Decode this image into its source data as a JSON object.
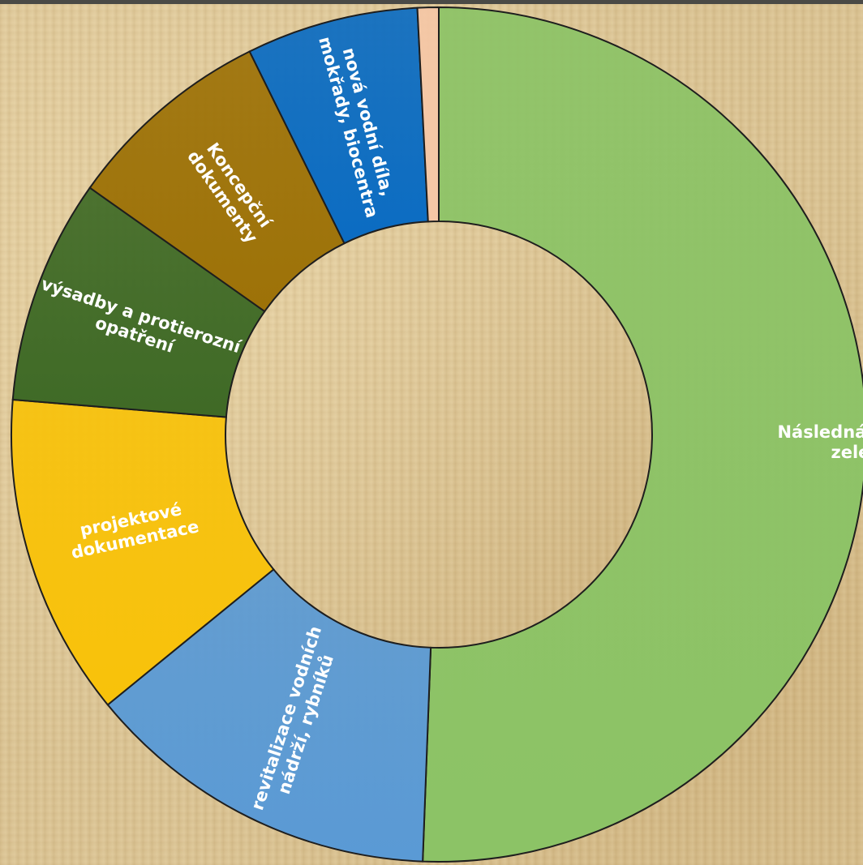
{
  "chart_data": {
    "type": "pie",
    "variant": "donut",
    "title": "",
    "slices": [
      {
        "label": "Následná péče o zeleň",
        "label_lines": [
          "Následná péče o",
          "zeleň"
        ],
        "value": 50.6,
        "color": "#8cc366",
        "label_rotation": 0
      },
      {
        "label": "revitalizace vodních nádrží, rybníků",
        "label_lines": [
          "revitalizace vodních",
          "nádrží, rybníků"
        ],
        "value": 13.5,
        "color": "#5a9ad5",
        "label_rotation": -72
      },
      {
        "label": "projektové dokumentace",
        "label_lines": [
          "projektové",
          "dokumentace"
        ],
        "value": 12.2,
        "color": "#f8c20a",
        "label_rotation": -12
      },
      {
        "label": "výsadby a protierozní opatření",
        "label_lines": [
          "výsadby a protierozní",
          "opatření"
        ],
        "value": 8.5,
        "color": "#3f6a26",
        "label_rotation": 18
      },
      {
        "label": "Koncepční dokumenty",
        "label_lines": [
          "Koncepční",
          "dokumenty"
        ],
        "value": 7.9,
        "color": "#9d7208",
        "label_rotation": 55
      },
      {
        "label": "nová vodní díla, mokřady, biocentra",
        "label_lines": [
          "nová vodní díla,",
          "mokřady, biocentra"
        ],
        "value": 6.5,
        "color": "#0b6cc2",
        "label_rotation": 75
      },
      {
        "label": "",
        "label_lines": [],
        "value": 0.8,
        "color": "#f5c7a6",
        "label_rotation": 0
      }
    ]
  }
}
